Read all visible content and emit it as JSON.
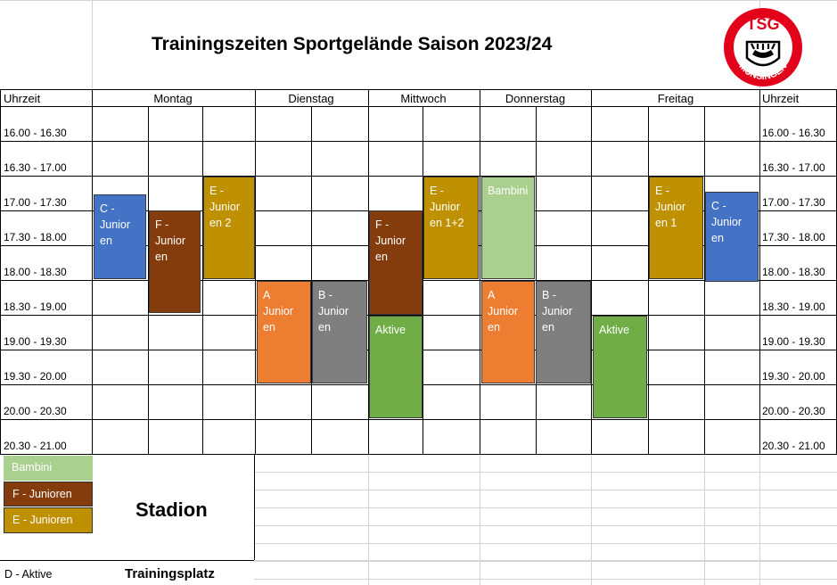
{
  "title": "Trainingszeiten Sportgelände  Saison 2023/24",
  "header": {
    "time_left": "Uhrzeit",
    "time_right": "Uhrzeit",
    "days": [
      "Montag",
      "Dienstag",
      "Mittwoch",
      "Donnerstag",
      "Freitag"
    ]
  },
  "times": [
    "16.00 - 16.30",
    "16.30 - 17.00",
    "17.00 - 17.30",
    "17.30 - 18.00",
    "18.00 - 18.30",
    "18.30 - 19.00",
    "19.00 - 19.30",
    "19.30 - 20.00",
    "20.00 - 20.30",
    "20.30 - 21.00"
  ],
  "blocks": [
    {
      "lines": [
        "C -",
        "Junior",
        "en"
      ],
      "color": "#4472c4"
    },
    {
      "lines": [
        "F -",
        "Junior",
        "en"
      ],
      "color": "#843c0c"
    },
    {
      "lines": [
        "E -",
        "Junior",
        "en 2"
      ],
      "color": "#bf9000"
    },
    {
      "lines": [
        "A",
        "Junior",
        "en"
      ],
      "color": "#ed7d31"
    },
    {
      "lines": [
        "B -",
        "Junior",
        "en"
      ],
      "color": "#7f7f7f"
    },
    {
      "lines": [
        "F -",
        "Junior",
        "en"
      ],
      "color": "#843c0c"
    },
    {
      "lines": [
        "Aktive"
      ],
      "color": "#70ad47"
    },
    {
      "lines": [
        "E -",
        "Junior",
        "en 1+2"
      ],
      "color": "#bf9000"
    },
    {
      "lines": [
        "Bambini"
      ],
      "color": "#a9d08e"
    },
    {
      "lines": [
        "A",
        "Junior",
        "en"
      ],
      "color": "#ed7d31"
    },
    {
      "lines": [
        "B -",
        "Junior",
        "en"
      ],
      "color": "#7f7f7f"
    },
    {
      "lines": [
        "Aktive"
      ],
      "color": "#70ad47"
    },
    {
      "lines": [
        "E -",
        "Junior",
        "en 1"
      ],
      "color": "#bf9000"
    },
    {
      "lines": [
        "C -",
        "Junior",
        "en"
      ],
      "color": "#4472c4"
    }
  ],
  "legend": [
    {
      "label": "Bambini",
      "color": "#a9d08e"
    },
    {
      "label": "F - Junioren",
      "color": "#843c0c"
    },
    {
      "label": "E - Junioren",
      "color": "#bf9000"
    }
  ],
  "stadion": "Stadion",
  "trainingsplatz": "Trainingsplatz",
  "d_aktive": "D - Aktive",
  "logo": {
    "top_text": "TSG",
    "bottom_text": "MÜNSINGEN",
    "color": "#e2001a",
    "icon": "antler-crest-icon"
  }
}
